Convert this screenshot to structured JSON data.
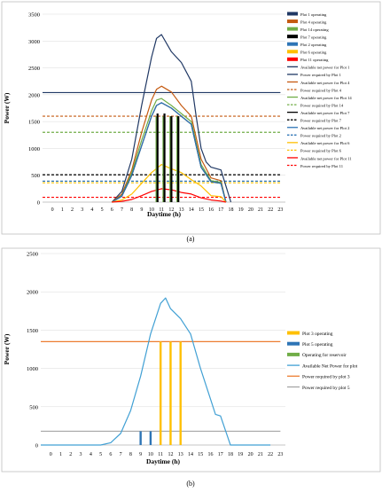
{
  "chart_data": [
    {
      "panel": "(a)",
      "type": "line",
      "xlabel": "Daytime (h)",
      "ylabel": "Power (W)",
      "xlim": [
        -1,
        23.5
      ],
      "ylim": [
        0,
        3500
      ],
      "x_ticks": [
        0,
        1,
        2,
        3,
        4,
        5,
        6,
        7,
        8,
        9,
        10,
        11,
        12,
        13,
        14,
        15,
        16,
        17,
        18,
        19,
        20,
        21,
        22,
        23
      ],
      "y_ticks": [
        0,
        500,
        1000,
        1500,
        2000,
        2500,
        3000,
        3500
      ],
      "grid": "horizontal",
      "legend_position": "right",
      "operating_series": [
        {
          "name": "Plot 1 operating",
          "color": "#203864",
          "bars": []
        },
        {
          "name": "Plot 4 operating",
          "color": "#c55a11",
          "bars": []
        },
        {
          "name": "Plot 14 operating",
          "color": "#70ad47",
          "bars": [
            [
              10.5,
              1600
            ],
            [
              11.2,
              1600
            ],
            [
              11.9,
              1600
            ],
            [
              12.6,
              1600
            ]
          ]
        },
        {
          "name": "Plot 7 operating",
          "color": "#000000",
          "bars": [
            [
              10.6,
              1650
            ],
            [
              11.3,
              1650
            ],
            [
              12.0,
              1600
            ],
            [
              12.7,
              1600
            ]
          ]
        },
        {
          "name": "Plot 2 operating",
          "color": "#2e75b6",
          "bars": []
        },
        {
          "name": "Plot 6 operating",
          "color": "#ffc000",
          "bars": []
        },
        {
          "name": "Plot 11 operating",
          "color": "#ff0000",
          "bars": []
        }
      ],
      "available_series": [
        {
          "name": "Available net power for Plot 1",
          "color": "#203864",
          "x": [
            6,
            7,
            8,
            9,
            10,
            10.5,
            11,
            12,
            13,
            14,
            14.5,
            15,
            15.5,
            16,
            17,
            17.5,
            18
          ],
          "y": [
            0,
            200,
            800,
            1800,
            2700,
            3050,
            3120,
            2800,
            2600,
            2250,
            1600,
            1000,
            750,
            650,
            600,
            300,
            0
          ]
        },
        {
          "name": "Available net power for Plot 4",
          "color": "#c55a11",
          "x": [
            6,
            7,
            8,
            9,
            10,
            10.5,
            11,
            12,
            13,
            14,
            14.5,
            15,
            16,
            17,
            17.5
          ],
          "y": [
            0,
            150,
            600,
            1300,
            1900,
            2100,
            2160,
            2050,
            1800,
            1600,
            1200,
            800,
            450,
            400,
            0
          ]
        },
        {
          "name": "Available net power for Plot 14",
          "color": "#70ad47",
          "x": [
            6,
            7,
            8,
            9,
            10,
            10.5,
            11,
            12,
            13,
            14,
            14.5,
            15,
            16,
            17,
            17.5
          ],
          "y": [
            0,
            120,
            550,
            1150,
            1700,
            1900,
            1930,
            1800,
            1650,
            1500,
            1100,
            700,
            400,
            370,
            0
          ]
        },
        {
          "name": "Available net power for Plot 7",
          "color": "#000000",
          "x": [
            6,
            7,
            8,
            9,
            10,
            10.5,
            11,
            12,
            13,
            14,
            14.5,
            15,
            16,
            17,
            17.5
          ],
          "y": [
            0,
            110,
            500,
            1050,
            1600,
            1800,
            1850,
            1750,
            1600,
            1450,
            1050,
            650,
            380,
            350,
            0
          ]
        },
        {
          "name": "Available net power for Plot 2",
          "color": "#2e75b6",
          "x": [
            6,
            7,
            8,
            9,
            10,
            10.5,
            11,
            12,
            13,
            14,
            14.5,
            15,
            16,
            17,
            17.5
          ],
          "y": [
            0,
            110,
            500,
            1050,
            1600,
            1800,
            1850,
            1750,
            1600,
            1450,
            1050,
            650,
            380,
            350,
            0
          ]
        },
        {
          "name": "Available net power for Plot 6",
          "color": "#ffc000",
          "x": [
            6,
            7,
            8,
            9,
            10,
            11,
            12,
            13,
            14,
            15,
            16,
            17,
            17.5
          ],
          "y": [
            0,
            40,
            150,
            350,
            550,
            700,
            620,
            550,
            420,
            300,
            120,
            100,
            0
          ]
        },
        {
          "name": "Available net power for Plot 11",
          "color": "#ff0000",
          "x": [
            6,
            7,
            8,
            9,
            10,
            11,
            12,
            13,
            14,
            15,
            16,
            17,
            17.5
          ],
          "y": [
            0,
            15,
            50,
            120,
            200,
            250,
            230,
            180,
            150,
            80,
            40,
            20,
            0
          ]
        }
      ],
      "required_series": [
        {
          "name": "Power required by Plot 1",
          "color": "#203864",
          "value": 2040,
          "dash": "solid"
        },
        {
          "name": "Power required by Plot 4",
          "color": "#c55a11",
          "value": 1600,
          "dash": "dashed"
        },
        {
          "name": "Power required by Plot 14",
          "color": "#70ad47",
          "value": 1300,
          "dash": "dashed"
        },
        {
          "name": "Power required by Plot 7",
          "color": "#000000",
          "value": 510,
          "dash": "dashed"
        },
        {
          "name": "Power required by Plot 2",
          "color": "#2e75b6",
          "value": 390,
          "dash": "dashed"
        },
        {
          "name": "Power required by Plot 6",
          "color": "#ffc000",
          "value": 360,
          "dash": "dashed"
        },
        {
          "name": "Power required by Plot 11",
          "color": "#ff0000",
          "value": 90,
          "dash": "dashed"
        }
      ]
    },
    {
      "panel": "(b)",
      "type": "line",
      "xlabel": "Daytime (h)",
      "ylabel": "Power (W)",
      "xlim": [
        -1,
        23.5
      ],
      "ylim": [
        0,
        2500
      ],
      "x_ticks": [
        0,
        1,
        2,
        3,
        4,
        5,
        6,
        7,
        8,
        9,
        10,
        11,
        12,
        13,
        14,
        15,
        16,
        17,
        18,
        19,
        20,
        21,
        22,
        23
      ],
      "y_ticks": [
        0,
        500,
        1000,
        1500,
        2000,
        2500
      ],
      "grid": "horizontal",
      "legend_position": "right",
      "operating_series": [
        {
          "name": "Plot 3 operating",
          "color": "#ffc000",
          "bars": [
            [
              11,
              1350
            ],
            [
              12,
              1350
            ],
            [
              13,
              1350
            ]
          ]
        },
        {
          "name": "Plot 5 operating",
          "color": "#2e75b6",
          "bars": [
            [
              9,
              180
            ],
            [
              10,
              180
            ]
          ]
        },
        {
          "name": "Operating for reservoir",
          "color": "#70ad47",
          "bars": []
        }
      ],
      "available_series": [
        {
          "name": "Available Net Power for plot",
          "color": "#41a0d4",
          "x": [
            -1,
            5,
            6,
            7,
            8,
            9,
            10,
            11,
            11.5,
            12,
            13,
            14,
            15,
            16,
            16.5,
            17,
            18,
            19,
            22
          ],
          "y": [
            0,
            0,
            30,
            150,
            450,
            900,
            1450,
            1850,
            1920,
            1780,
            1650,
            1450,
            1000,
            600,
            400,
            380,
            0,
            0,
            0
          ]
        }
      ],
      "required_series": [
        {
          "name": "Power required by plot 3",
          "color": "#ed7d31",
          "value": 1350,
          "dash": "solid"
        },
        {
          "name": "Power required by plot 5",
          "color": "#a5a5a5",
          "value": 180,
          "dash": "solid"
        }
      ]
    }
  ]
}
